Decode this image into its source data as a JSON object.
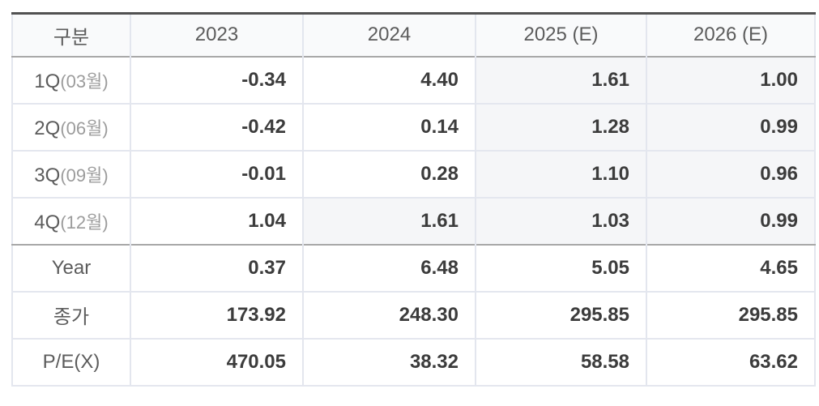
{
  "table": {
    "columns": [
      {
        "label": "구분"
      },
      {
        "label": "2023"
      },
      {
        "label": "2024"
      },
      {
        "label": "2025 (E)"
      },
      {
        "label": "2026 (E)"
      }
    ],
    "rows": [
      {
        "label": "1Q",
        "sublabel": "(03월)",
        "values": [
          "-0.34",
          "4.40",
          "1.61",
          "1.00"
        ],
        "estimate_cells": [
          false,
          false,
          true,
          true
        ]
      },
      {
        "label": "2Q",
        "sublabel": "(06월)",
        "values": [
          "-0.42",
          "0.14",
          "1.28",
          "0.99"
        ],
        "estimate_cells": [
          false,
          false,
          true,
          true
        ]
      },
      {
        "label": "3Q",
        "sublabel": "(09월)",
        "values": [
          "-0.01",
          "0.28",
          "1.10",
          "0.96"
        ],
        "estimate_cells": [
          false,
          false,
          true,
          true
        ]
      },
      {
        "label": "4Q",
        "sublabel": "(12월)",
        "values": [
          "1.04",
          "1.61",
          "1.03",
          "0.99"
        ],
        "estimate_cells": [
          false,
          true,
          true,
          true
        ]
      },
      {
        "label": "Year",
        "sublabel": "",
        "values": [
          "0.37",
          "6.48",
          "5.05",
          "4.65"
        ],
        "estimate_cells": [
          false,
          false,
          false,
          false
        ]
      },
      {
        "label": "종가",
        "sublabel": "",
        "values": [
          "173.92",
          "248.30",
          "295.85",
          "295.85"
        ],
        "estimate_cells": [
          false,
          false,
          false,
          false
        ]
      },
      {
        "label": "P/E(X)",
        "sublabel": "",
        "values": [
          "470.05",
          "38.32",
          "58.58",
          "63.62"
        ],
        "estimate_cells": [
          false,
          false,
          false,
          false
        ]
      }
    ],
    "colors": {
      "top_border": "#515151",
      "section_divider": "#a8a8a8",
      "grid_line": "#e4e7ef",
      "header_bg": "#f9fafb",
      "estimate_cell_bg": "#f5f6f8",
      "number_text": "#3c3c3c",
      "label_text": "#5c5c5c",
      "sublabel_text": "#9c9c9c"
    }
  }
}
